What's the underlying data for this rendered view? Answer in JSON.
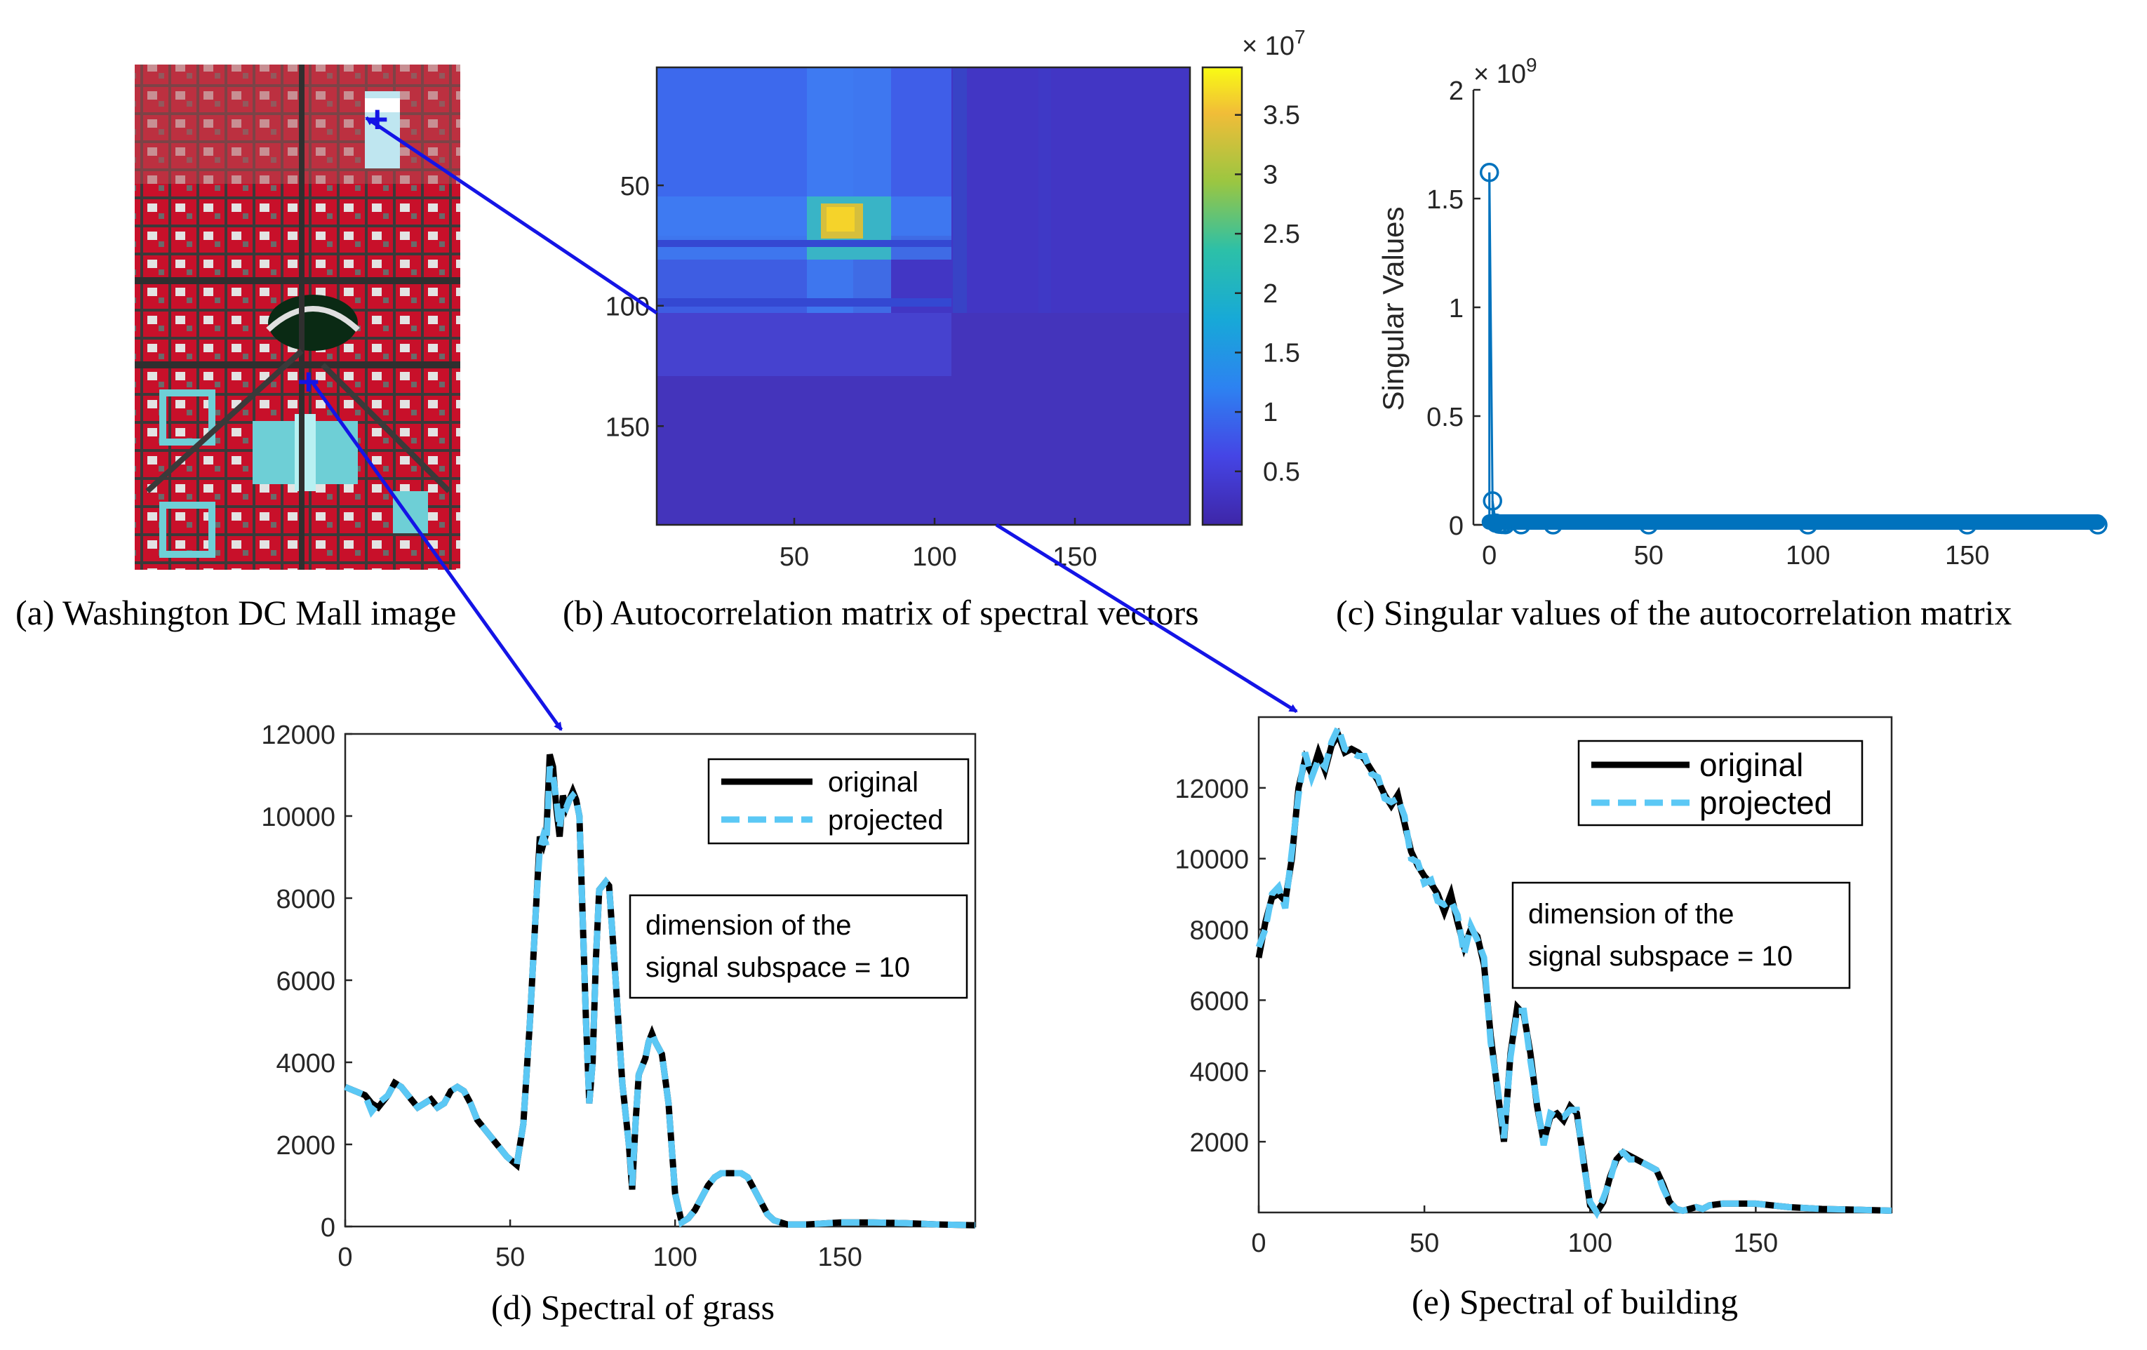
{
  "colors": {
    "original": "#000000",
    "projected": "#5BC8F5",
    "arrow": "#1414E6",
    "stem": "#0072BD"
  },
  "panel_a": {
    "caption": "(a) Washington DC Mall image"
  },
  "panel_b": {
    "caption": "(b) Autocorrelation matrix of  spectral vectors",
    "colorbar_exponent": "× 10",
    "colorbar_exponent_power": "7",
    "colorbar_ticks": [
      "3.5",
      "3",
      "2.5",
      "2",
      "1.5",
      "1",
      "0.5"
    ],
    "yticks": [
      "50",
      "100",
      "150"
    ],
    "xticks": [
      "50",
      "100",
      "150"
    ]
  },
  "panel_c": {
    "caption": "(c) Singular values of the autocorrelation matrix",
    "ylabel": "Singular Values",
    "exponent": "× 10",
    "exponent_power": "9",
    "yticks": [
      "2",
      "1.5",
      "1",
      "0.5",
      "0"
    ],
    "xticks": [
      "0",
      "50",
      "100",
      "150"
    ]
  },
  "panel_d": {
    "caption": "(d)  Spectral of grass",
    "yticks": [
      "12000",
      "10000",
      "8000",
      "6000",
      "4000",
      "2000",
      "0"
    ],
    "xticks": [
      "0",
      "50",
      "100",
      "150"
    ],
    "legend": [
      "original",
      "projected"
    ],
    "note_line1": "dimension of the",
    "note_line2": "signal subspace = 10"
  },
  "panel_e": {
    "caption": "(e)  Spectral of building",
    "yticks": [
      "12000",
      "10000",
      "8000",
      "6000",
      "4000",
      "2000"
    ],
    "xticks": [
      "0",
      "50",
      "100",
      "150"
    ],
    "legend": [
      "original",
      "projected"
    ],
    "note_line1": "dimension of the",
    "note_line2": "signal subspace = 10"
  },
  "chart_data": [
    {
      "type": "heatmap",
      "title": "Autocorrelation matrix of spectral vectors",
      "xlim": [
        1,
        191
      ],
      "ylim": [
        1,
        191
      ],
      "colorbar_range": [
        0,
        38000000
      ],
      "description_values": {
        "peak_value": 38000000,
        "peak_location": [
          62,
          62
        ]
      }
    },
    {
      "type": "scatter",
      "title": "Singular values of the autocorrelation matrix",
      "ylabel": "Singular Values",
      "x": [
        0,
        1,
        2,
        3,
        4,
        5,
        10,
        20,
        50,
        100,
        150,
        191
      ],
      "y": [
        1620000000,
        110000000,
        8000000,
        3000000,
        1500000,
        800000,
        300000,
        100000,
        20000,
        5000,
        1000,
        100
      ],
      "xlim": [
        -5,
        191
      ],
      "ylim": [
        0,
        2000000000
      ]
    },
    {
      "type": "line",
      "title": "Spectral of grass",
      "xlim": [
        0,
        191
      ],
      "ylim": [
        0,
        12000
      ],
      "series": [
        {
          "name": "original",
          "x": [
            0,
            3,
            6,
            8,
            10,
            13,
            15,
            17,
            20,
            22,
            24,
            26,
            28,
            30,
            32,
            34,
            36,
            38,
            40,
            43,
            46,
            49,
            52,
            54,
            56,
            58,
            59,
            60,
            61,
            62,
            63,
            64,
            65,
            66,
            67,
            68,
            69,
            70,
            71,
            72,
            73,
            74,
            75,
            76,
            77,
            78,
            79,
            80,
            82,
            84,
            86,
            87,
            88,
            89,
            90,
            91,
            92,
            93,
            94,
            96,
            98,
            100,
            102,
            104,
            106,
            108,
            110,
            112,
            114,
            116,
            118,
            120,
            122,
            124,
            126,
            128,
            130,
            132,
            134,
            136,
            140,
            150,
            160,
            170,
            180,
            191
          ],
          "y": [
            3400,
            3300,
            3200,
            3000,
            2900,
            3200,
            3500,
            3400,
            3100,
            2900,
            3000,
            3100,
            2900,
            3000,
            3300,
            3400,
            3300,
            3000,
            2600,
            2300,
            2000,
            1700,
            1500,
            2500,
            5000,
            8000,
            9500,
            9300,
            9600,
            11500,
            11200,
            10200,
            9500,
            10500,
            10200,
            10400,
            10600,
            10400,
            10000,
            7500,
            5000,
            3000,
            4000,
            6500,
            8200,
            8300,
            8400,
            8300,
            6000,
            3500,
            2000,
            900,
            2500,
            3700,
            3900,
            4100,
            4500,
            4700,
            4500,
            4200,
            3000,
            800,
            100,
            200,
            400,
            700,
            1000,
            1200,
            1300,
            1300,
            1300,
            1300,
            1200,
            900,
            600,
            300,
            150,
            100,
            50,
            50,
            50,
            100,
            100,
            80,
            50,
            30
          ]
        },
        {
          "name": "projected",
          "x": [
            0,
            3,
            6,
            8,
            10,
            13,
            15,
            17,
            20,
            22,
            24,
            26,
            28,
            30,
            32,
            34,
            36,
            38,
            40,
            43,
            46,
            49,
            52,
            54,
            56,
            58,
            59,
            60,
            61,
            62,
            63,
            64,
            65,
            66,
            67,
            68,
            69,
            70,
            71,
            72,
            73,
            74,
            75,
            76,
            77,
            78,
            79,
            80,
            82,
            84,
            86,
            87,
            88,
            89,
            90,
            91,
            92,
            93,
            94,
            96,
            98,
            100,
            102,
            104,
            106,
            108,
            110,
            112,
            114,
            116,
            118,
            120,
            122,
            124,
            126,
            128,
            130,
            132,
            134,
            136,
            140,
            150,
            160,
            170,
            180,
            191
          ],
          "y": [
            3400,
            3300,
            3200,
            2800,
            3000,
            3200,
            3500,
            3400,
            3100,
            2900,
            3000,
            3100,
            2900,
            3000,
            3300,
            3400,
            3300,
            3000,
            2600,
            2300,
            2000,
            1700,
            1500,
            2500,
            5000,
            8000,
            9200,
            9500,
            9300,
            11200,
            11000,
            10400,
            9700,
            10300,
            10200,
            10400,
            10500,
            10400,
            10000,
            7500,
            5000,
            3000,
            4000,
            6500,
            8200,
            8300,
            8400,
            8300,
            6000,
            3500,
            2000,
            1000,
            2500,
            3700,
            3900,
            4100,
            4500,
            4700,
            4500,
            4200,
            3000,
            800,
            100,
            200,
            400,
            700,
            1000,
            1200,
            1300,
            1300,
            1300,
            1300,
            1200,
            900,
            600,
            300,
            150,
            100,
            50,
            50,
            50,
            100,
            100,
            80,
            50,
            30
          ]
        }
      ]
    },
    {
      "type": "line",
      "title": "Spectral of building",
      "xlim": [
        0,
        191
      ],
      "ylim": [
        0,
        14000
      ],
      "series": [
        {
          "name": "original",
          "x": [
            0,
            2,
            4,
            6,
            8,
            10,
            12,
            14,
            16,
            18,
            20,
            22,
            24,
            26,
            28,
            30,
            32,
            34,
            36,
            38,
            40,
            42,
            44,
            46,
            48,
            50,
            52,
            54,
            56,
            58,
            60,
            62,
            64,
            66,
            68,
            70,
            72,
            74,
            76,
            78,
            80,
            82,
            84,
            86,
            88,
            90,
            92,
            94,
            96,
            98,
            100,
            102,
            104,
            106,
            108,
            110,
            112,
            114,
            116,
            118,
            120,
            122,
            124,
            126,
            128,
            130,
            132,
            134,
            136,
            140,
            150,
            160,
            170,
            180,
            191
          ],
          "y": [
            7200,
            8200,
            8900,
            9000,
            8800,
            10000,
            12000,
            12800,
            12400,
            13000,
            12500,
            13200,
            13500,
            13000,
            13100,
            13000,
            12800,
            12500,
            12200,
            11800,
            11500,
            11800,
            11000,
            10200,
            9800,
            9500,
            9300,
            9000,
            8500,
            9000,
            8200,
            7500,
            8000,
            7800,
            7000,
            5000,
            3500,
            2000,
            4500,
            5800,
            5600,
            4500,
            3000,
            2000,
            2700,
            2800,
            2600,
            3000,
            2800,
            1500,
            200,
            0,
            300,
            1000,
            1500,
            1700,
            1600,
            1500,
            1400,
            1300,
            1200,
            800,
            300,
            100,
            50,
            100,
            150,
            100,
            200,
            250,
            250,
            150,
            100,
            80,
            50
          ]
        },
        {
          "name": "projected",
          "x": [
            0,
            2,
            4,
            6,
            8,
            10,
            12,
            14,
            16,
            18,
            20,
            22,
            24,
            26,
            28,
            30,
            32,
            34,
            36,
            38,
            40,
            42,
            44,
            46,
            48,
            50,
            52,
            54,
            56,
            58,
            60,
            62,
            64,
            66,
            68,
            70,
            72,
            74,
            76,
            78,
            80,
            82,
            84,
            86,
            88,
            90,
            92,
            94,
            96,
            98,
            100,
            102,
            104,
            106,
            108,
            110,
            112,
            114,
            116,
            118,
            120,
            122,
            124,
            126,
            128,
            130,
            132,
            134,
            136,
            140,
            150,
            160,
            170,
            180,
            191
          ],
          "y": [
            7500,
            8000,
            9000,
            9200,
            8600,
            10200,
            11800,
            13000,
            12300,
            12800,
            12600,
            13300,
            13700,
            13100,
            13000,
            12900,
            12900,
            12400,
            12300,
            11700,
            11600,
            11700,
            11200,
            10000,
            9900,
            9300,
            9400,
            8800,
            8700,
            8800,
            8400,
            7300,
            8100,
            7700,
            7200,
            4800,
            3600,
            2100,
            4400,
            5700,
            5700,
            4300,
            3100,
            1900,
            2800,
            2700,
            2700,
            2900,
            2900,
            1400,
            300,
            0,
            400,
            900,
            1600,
            1700,
            1500,
            1500,
            1400,
            1300,
            1200,
            700,
            300,
            100,
            50,
            100,
            150,
            100,
            200,
            250,
            250,
            150,
            100,
            80,
            50
          ]
        }
      ]
    }
  ]
}
